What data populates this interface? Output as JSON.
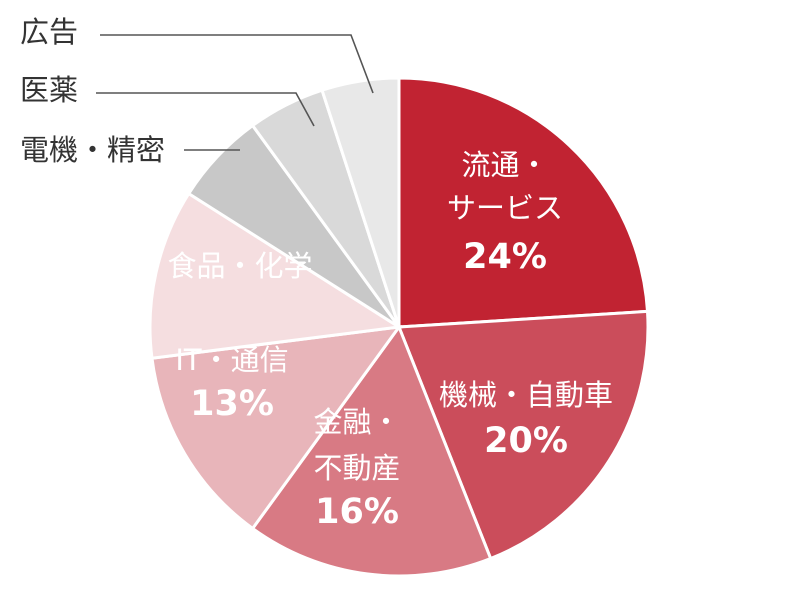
{
  "chart_data": {
    "type": "pie",
    "start": "12 o'clock",
    "direction": "clockwise",
    "slices": [
      {
        "label_lines": [
          "流通・",
          "サービス"
        ],
        "value": 24,
        "value_label": "24%",
        "color": "#C12332",
        "label_color": "#ffffff"
      },
      {
        "label_lines": [
          "機械・自動車"
        ],
        "value": 20,
        "value_label": "20%",
        "color": "#CB4D5B",
        "label_color": "#ffffff"
      },
      {
        "label_lines": [
          "金融・",
          "不動産"
        ],
        "value": 16,
        "value_label": "16%",
        "color": "#D87A84",
        "label_color": "#ffffff"
      },
      {
        "label_lines": [
          "IT・通信"
        ],
        "value": 13,
        "value_label": "13%",
        "color": "#E8B5BA",
        "label_color": "#333333"
      },
      {
        "label_lines": [
          "食品・化学"
        ],
        "value": 11,
        "value_label": "",
        "color": "#F5DEE0",
        "label_color": "#333333"
      },
      {
        "label_lines": [
          "電機・精密"
        ],
        "value": 6,
        "value_label": "",
        "color": "#C8C8C8",
        "label_color": "#333333"
      },
      {
        "label_lines": [
          "医薬"
        ],
        "value": 5,
        "value_label": "",
        "color": "#D9D9D9",
        "label_color": "#333333"
      },
      {
        "label_lines": [
          "広告"
        ],
        "value": 5,
        "value_label": "",
        "color": "#E8E8E8",
        "label_color": "#333333"
      }
    ]
  }
}
